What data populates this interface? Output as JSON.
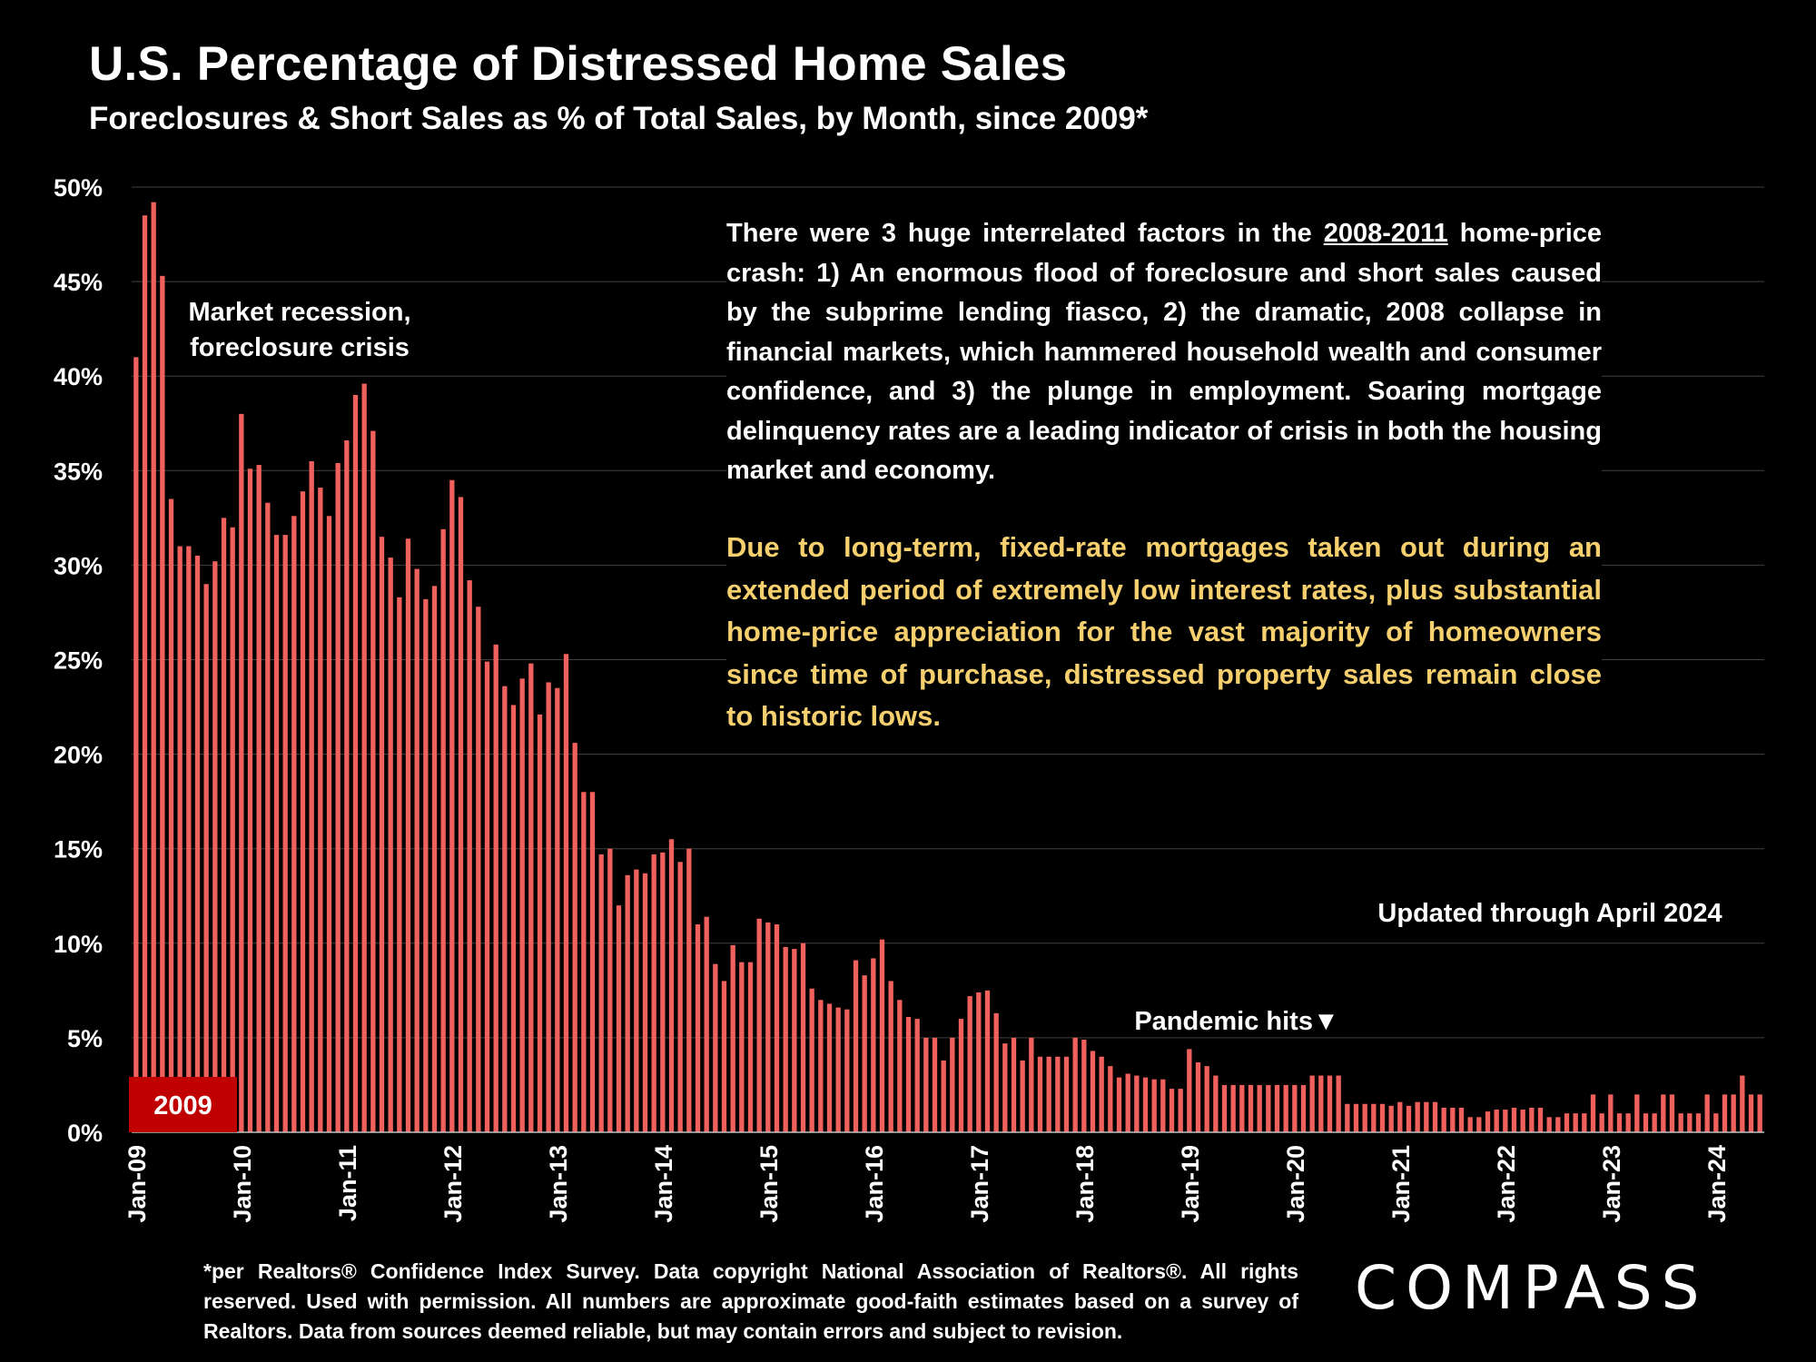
{
  "title": "U.S. Percentage of Distressed Home Sales",
  "subtitle": "Foreclosures & Short Sales as % of Total Sales, by Month, since 2009*",
  "annotations": {
    "recession_line1": "Market recession,",
    "recession_line2": "foreclosure crisis",
    "main_text_before": "There were 3 huge interrelated factors in the ",
    "main_text_underlined": "2008-2011",
    "main_text_after": " home-price crash:  1) An enormous flood of foreclosure and short sales caused by the subprime lending fiasco, 2) the dramatic, 2008 collapse in  financial markets, which hammered household wealth and consumer confidence, and 3) the plunge in employment. Soaring mortgage delinquency rates are a leading indicator of crisis in both the housing market and economy.",
    "yellow_text": "Due to long-term, fixed-rate mortgages taken out during an extended period of extremely low interest rates, plus substantial home-price appreciation for the vast majority of homeowners since time of purchase, distressed property sales remain close to historic lows.",
    "updated": "Updated through April 2024",
    "pandemic": "Pandemic hits▼",
    "year_badge": "2009"
  },
  "footnote": "*per Realtors® Confidence Index Survey. Data copyright National Association of Realtors®. All rights reserved. Used with permission. All numbers are approximate good-faith estimates based on a survey of Realtors. Data from sources deemed reliable, but may contain errors and subject to revision.",
  "logo": "COMPASS",
  "colors": {
    "bar": "#f0605d",
    "badge": "#c00000",
    "grid": "#404040",
    "yellow": "#f6d06e",
    "background": "#000000"
  },
  "chart_data": {
    "type": "bar",
    "ylim": [
      0,
      50
    ],
    "yticks": [
      "0%",
      "5%",
      "10%",
      "15%",
      "20%",
      "25%",
      "30%",
      "35%",
      "40%",
      "45%",
      "50%"
    ],
    "xtick_labels": [
      "Jan-09",
      "Jan-10",
      "Jan-11",
      "Jan-12",
      "Jan-13",
      "Jan-14",
      "Jan-15",
      "Jan-16",
      "Jan-17",
      "Jan-18",
      "Jan-19",
      "Jan-20",
      "Jan-21",
      "Jan-22",
      "Jan-23",
      "Jan-24"
    ],
    "start_month": "Jan-09",
    "end_month": "Apr-24",
    "grid": true,
    "values": [
      41,
      48.5,
      49.2,
      45.3,
      33.5,
      31,
      31,
      30.5,
      29,
      30.2,
      32.5,
      32,
      38,
      35.1,
      35.3,
      33.3,
      31.6,
      31.6,
      32.6,
      33.9,
      35.5,
      34.1,
      32.6,
      35.4,
      36.6,
      39,
      39.6,
      37.1,
      31.5,
      30.4,
      28.3,
      31.4,
      29.8,
      28.2,
      28.9,
      31.9,
      34.5,
      33.6,
      29.2,
      27.8,
      24.9,
      25.8,
      23.6,
      22.6,
      24,
      24.8,
      22.1,
      23.8,
      23.5,
      25.3,
      20.6,
      18,
      18,
      14.7,
      15,
      12,
      13.6,
      13.9,
      13.7,
      14.7,
      14.8,
      15.5,
      14.3,
      15,
      11,
      11.4,
      8.9,
      8,
      9.9,
      9,
      9,
      11.3,
      11.1,
      11,
      9.8,
      9.7,
      10,
      7.6,
      7,
      6.8,
      6.6,
      6.5,
      9.1,
      8.3,
      9.2,
      10.2,
      8,
      7,
      6.1,
      6,
      5,
      5,
      3.8,
      5,
      6,
      7.2,
      7.4,
      7.5,
      6.3,
      4.7,
      5,
      3.8,
      5,
      4,
      4,
      4,
      4,
      5,
      4.9,
      4.3,
      4,
      3.5,
      2.9,
      3.1,
      3,
      2.9,
      2.8,
      2.8,
      2.3,
      2.3,
      4.4,
      3.7,
      3.5,
      3,
      2.5,
      2.5,
      2.5,
      2.5,
      2.5,
      2.5,
      2.5,
      2.5,
      2.5,
      2.5,
      3,
      3,
      3,
      3,
      1.5,
      1.5,
      1.5,
      1.5,
      1.5,
      1.4,
      1.6,
      1.4,
      1.6,
      1.6,
      1.6,
      1.3,
      1.3,
      1.3,
      0.8,
      0.8,
      1.1,
      1.2,
      1.2,
      1.3,
      1.2,
      1.3,
      1.3,
      0.8,
      0.8,
      1,
      1,
      1,
      2,
      1,
      2,
      1,
      1,
      2,
      1,
      1,
      2,
      2,
      1,
      1,
      1,
      2,
      1,
      2,
      2,
      3,
      2,
      2
    ]
  }
}
